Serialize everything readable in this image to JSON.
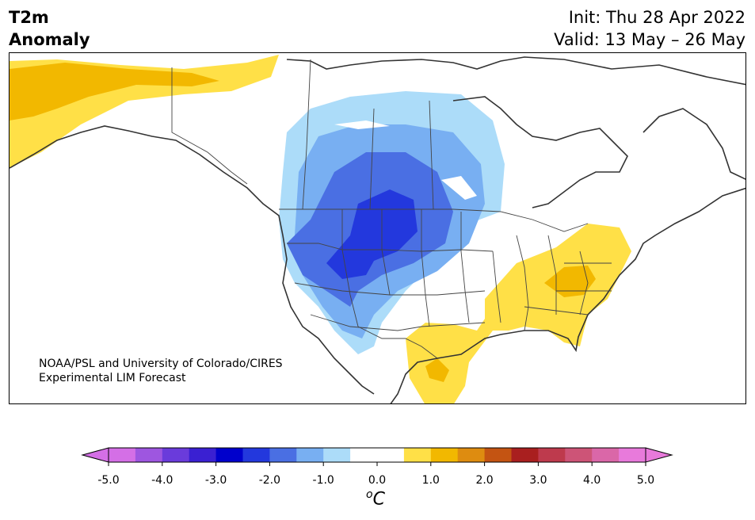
{
  "header": {
    "title_line1": "T2m",
    "title_line2": "Anomaly",
    "init": "Init: Thu 28 Apr 2022",
    "valid": "Valid: 13 May – 26 May"
  },
  "credit": {
    "line1": "NOAA/PSL and University of Colorado/CIRES",
    "line2": "Experimental LIM Forecast"
  },
  "colorbar": {
    "unit_base": "C",
    "unit_sup": "o",
    "ticks": [
      "-5.0",
      "-4.0",
      "-3.0",
      "-2.0",
      "-1.0",
      "0.0",
      "1.0",
      "2.0",
      "3.0",
      "4.0",
      "5.0"
    ],
    "colors": [
      "#d46fe6",
      "#9e56e0",
      "#6a3bdb",
      "#3a20d2",
      "#0000cc",
      "#2338dd",
      "#4a6fe3",
      "#78aff2",
      "#acdcf9",
      "#ffffff",
      "#ffffff",
      "#ffe047",
      "#f2b800",
      "#de8c10",
      "#c45412",
      "#a91f1f",
      "#be3a4d",
      "#cd5477",
      "#da67a8",
      "#e87adb"
    ],
    "under_color": "#d46fe6",
    "over_color": "#e87adb"
  },
  "map": {
    "region": "North America",
    "colors": {
      "blue_1": "#acdcf9",
      "blue_2": "#78aff2",
      "blue_3": "#4a6fe3",
      "blue_4": "#2338dd",
      "yellow_1": "#ffe047",
      "yellow_2": "#f2b800"
    }
  }
}
